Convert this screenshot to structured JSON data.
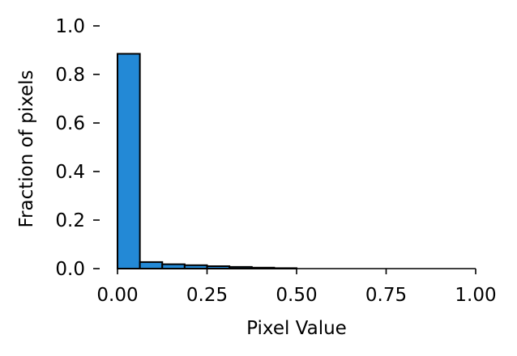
{
  "chart_data": {
    "type": "bar",
    "xlabel": "Pixel Value",
    "ylabel": "Fraction of pixels",
    "xlim": [
      0,
      1
    ],
    "ylim": [
      0,
      1
    ],
    "xticks": [
      "0.00",
      "0.25",
      "0.50",
      "0.75",
      "1.00"
    ],
    "yticks": [
      "0.0",
      "0.2",
      "0.4",
      "0.6",
      "0.8",
      "1.0"
    ],
    "grid": false,
    "bar_color": "#2389d6",
    "edge_color": "#000000",
    "bins": [
      {
        "x0": 0.0,
        "x1": 0.0625,
        "value": 0.885
      },
      {
        "x0": 0.0625,
        "x1": 0.125,
        "value": 0.027
      },
      {
        "x0": 0.125,
        "x1": 0.1875,
        "value": 0.018
      },
      {
        "x0": 0.1875,
        "x1": 0.25,
        "value": 0.014
      },
      {
        "x0": 0.25,
        "x1": 0.3125,
        "value": 0.01
      },
      {
        "x0": 0.3125,
        "x1": 0.375,
        "value": 0.007
      },
      {
        "x0": 0.375,
        "x1": 0.4375,
        "value": 0.004
      },
      {
        "x0": 0.4375,
        "x1": 0.5,
        "value": 0.002
      },
      {
        "x0": 0.5,
        "x1": 0.5625,
        "value": 0.0
      },
      {
        "x0": 0.5625,
        "x1": 0.625,
        "value": 0.0
      },
      {
        "x0": 0.625,
        "x1": 0.6875,
        "value": 0.0
      },
      {
        "x0": 0.6875,
        "x1": 0.75,
        "value": 0.0
      },
      {
        "x0": 0.75,
        "x1": 0.8125,
        "value": 0.0
      },
      {
        "x0": 0.8125,
        "x1": 0.875,
        "value": 0.0
      },
      {
        "x0": 0.875,
        "x1": 0.9375,
        "value": 0.0
      },
      {
        "x0": 0.9375,
        "x1": 1.0,
        "value": 0.0
      }
    ]
  }
}
